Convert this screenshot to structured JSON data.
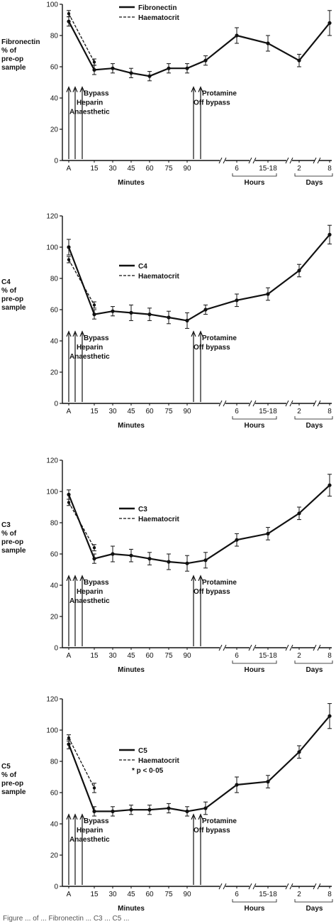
{
  "chart_data": [
    {
      "type": "line",
      "ylabel_lines": [
        "Fibronectin",
        "% of",
        "pre-op",
        "sample"
      ],
      "ylim": [
        0,
        100
      ],
      "yticks": [
        0,
        20,
        40,
        60,
        80,
        100
      ],
      "xticks": [
        "A",
        "15",
        "30",
        "45",
        "60",
        "75",
        "90",
        "6",
        "15-18",
        "2",
        "8"
      ],
      "xgroups": [
        "Minutes",
        "Hours",
        "Days"
      ],
      "legend": {
        "main": "Fibronectin",
        "ref": "Haematocrit"
      },
      "arrows_left": [
        "Bypass",
        "Heparin",
        "Anaesthetic"
      ],
      "arrows_right": [
        "Protamine",
        "Off bypass"
      ],
      "series": [
        {
          "name": "Fibronectin",
          "style": "solid",
          "x": [
            "A",
            "15",
            "30",
            "45",
            "60",
            "75",
            "90",
            "Protamine",
            "6",
            "15-18",
            "2",
            "8"
          ],
          "y": [
            89,
            58,
            59,
            56,
            54,
            59,
            59,
            64,
            80,
            75,
            64,
            88
          ],
          "err": [
            3,
            3,
            3,
            3,
            3,
            3,
            3,
            3,
            5,
            5,
            4,
            8
          ]
        },
        {
          "name": "Haematocrit",
          "style": "dashed",
          "x": [
            "A",
            "15"
          ],
          "y": [
            94,
            63
          ],
          "err": [
            2,
            2
          ]
        }
      ]
    },
    {
      "type": "line",
      "ylabel_lines": [
        "C4",
        "% of",
        "pre-op",
        "sample"
      ],
      "ylim": [
        0,
        120
      ],
      "yticks": [
        0,
        20,
        40,
        60,
        80,
        100,
        120
      ],
      "xticks": [
        "A",
        "15",
        "30",
        "45",
        "60",
        "75",
        "90",
        "6",
        "15-18",
        "2",
        "8"
      ],
      "xgroups": [
        "Minutes",
        "Hours",
        "Days"
      ],
      "legend": {
        "main": "C4",
        "ref": "Haematocrit"
      },
      "arrows_left": [
        "Bypass",
        "Heparin",
        "Anaesthetic"
      ],
      "arrows_right": [
        "Protamine",
        "Off bypass"
      ],
      "series": [
        {
          "name": "C4",
          "style": "solid",
          "x": [
            "A",
            "15",
            "30",
            "45",
            "60",
            "75",
            "90",
            "Protamine",
            "6",
            "15-18",
            "2",
            "8"
          ],
          "y": [
            100,
            57,
            59,
            58,
            57,
            55,
            53,
            60,
            66,
            70,
            85,
            108
          ],
          "err": [
            5,
            3,
            3,
            5,
            4,
            4,
            5,
            3,
            4,
            4,
            4,
            6
          ]
        },
        {
          "name": "Haematocrit",
          "style": "dashed",
          "x": [
            "A",
            "15"
          ],
          "y": [
            92,
            63
          ],
          "err": [
            2,
            2
          ]
        }
      ]
    },
    {
      "type": "line",
      "ylabel_lines": [
        "C3",
        "% of",
        "pre-op",
        "sample"
      ],
      "ylim": [
        0,
        120
      ],
      "yticks": [
        0,
        20,
        40,
        60,
        80,
        100,
        120
      ],
      "xticks": [
        "A",
        "15",
        "30",
        "45",
        "60",
        "75",
        "90",
        "6",
        "15-18",
        "2",
        "8"
      ],
      "xgroups": [
        "Minutes",
        "Hours",
        "Days"
      ],
      "legend": {
        "main": "C3",
        "ref": "Haematocrit"
      },
      "arrows_left": [
        "Bypass",
        "Heparin",
        "Anaesthetic"
      ],
      "arrows_right": [
        "Protamine",
        "Off bypass"
      ],
      "series": [
        {
          "name": "C3",
          "style": "solid",
          "x": [
            "A",
            "15",
            "30",
            "45",
            "60",
            "75",
            "90",
            "Protamine",
            "6",
            "15-18",
            "2",
            "8"
          ],
          "y": [
            98,
            57,
            60,
            59,
            57,
            55,
            54,
            56,
            69,
            73,
            86,
            104
          ],
          "err": [
            3,
            3,
            5,
            4,
            4,
            5,
            5,
            5,
            4,
            4,
            4,
            7
          ]
        },
        {
          "name": "Haematocrit",
          "style": "dashed",
          "x": [
            "A",
            "15"
          ],
          "y": [
            93,
            64
          ],
          "err": [
            2,
            2
          ]
        }
      ]
    },
    {
      "type": "line",
      "ylabel_lines": [
        "C5",
        "% of",
        "pre-op",
        "sample"
      ],
      "ylim": [
        0,
        120
      ],
      "yticks": [
        0,
        20,
        40,
        60,
        80,
        100,
        120
      ],
      "xticks": [
        "A",
        "15",
        "30",
        "45",
        "60",
        "75",
        "90",
        "6",
        "15-18",
        "2",
        "8"
      ],
      "xgroups": [
        "Minutes",
        "Hours",
        "Days"
      ],
      "legend": {
        "main": "C5",
        "ref": "Haematocrit",
        "note": "* p < 0·05"
      },
      "arrows_left": [
        "Bypass",
        "Heparin",
        "Anaesthetic"
      ],
      "arrows_right": [
        "Protamine",
        "Off bypass"
      ],
      "series": [
        {
          "name": "C5",
          "style": "solid",
          "x": [
            "A",
            "15",
            "30",
            "45",
            "60",
            "75",
            "90",
            "Protamine",
            "6",
            "15-18",
            "2",
            "8"
          ],
          "y": [
            91,
            48,
            48,
            49,
            49,
            50,
            48,
            50,
            65,
            67,
            86,
            109
          ],
          "err": [
            3,
            3,
            3,
            3,
            3,
            3,
            3,
            4,
            5,
            4,
            4,
            8
          ]
        },
        {
          "name": "Haematocrit",
          "style": "dashed",
          "x": [
            "A",
            "15"
          ],
          "y": [
            95,
            63
          ],
          "err": [
            2,
            3
          ]
        }
      ]
    }
  ],
  "caption": "Figure   ...  of  ...  Fibronectin   ...   C3   ...   C5   ..."
}
